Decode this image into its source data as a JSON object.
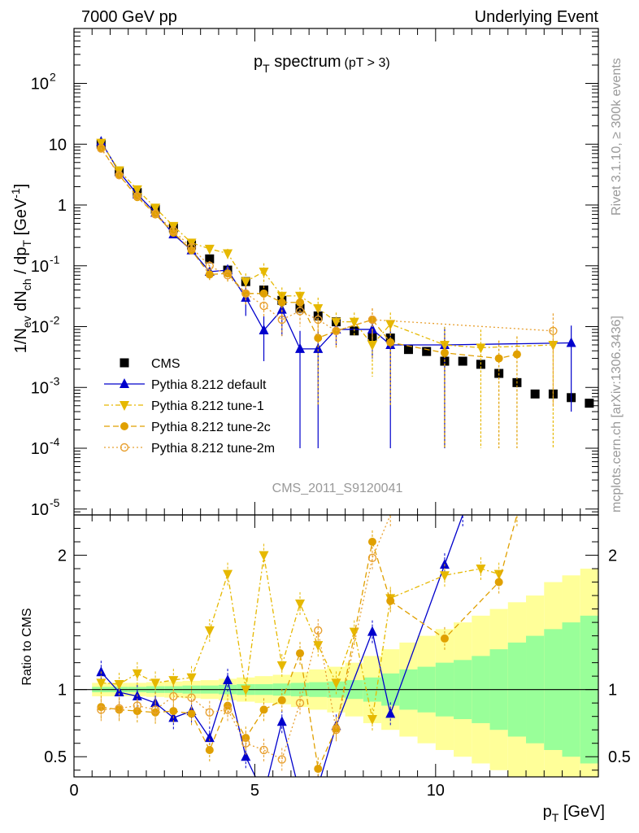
{
  "header": {
    "left": "7000 GeV pp",
    "right": "Underlying Event"
  },
  "side": {
    "top": "Rivet 3.1.10, ≥ 300k events",
    "bottom": "mcplots.cern.ch [arXiv:1306.3436]"
  },
  "watermark": "CMS_2011_S9120041",
  "colors": {
    "cms": "#000000",
    "default": "#0000cc",
    "tune1": "#e6b800",
    "tune2c": "#e0a000",
    "tune2m": "#e8a030",
    "band_green": "#99ff99",
    "band_yellow": "#ffff99"
  },
  "chart_data": [
    {
      "type": "scatter",
      "title_main": "p",
      "title_sub": "T",
      "title_rest": " spectrum",
      "title_cut": "(pT >  3)",
      "ylabel": "1/N_ev dN_ch / dp_T [GeV^-1]",
      "ylabel_parts": {
        "a": "1/N",
        "b": "ev",
        "c": " dN",
        "d": "ch",
        "e": " / dp",
        "f": "T",
        "g": " [GeV",
        "h": "-1",
        "i": "]"
      },
      "xlim": [
        0,
        14.5
      ],
      "yscale": "log",
      "ylim": [
        8e-06,
        800
      ],
      "yticks": [
        {
          "v": 1e-05,
          "m": "10",
          "e": "-5"
        },
        {
          "v": 0.0001,
          "m": "10",
          "e": "-4"
        },
        {
          "v": 0.001,
          "m": "10",
          "e": "-3"
        },
        {
          "v": 0.01,
          "m": "10",
          "e": "-2"
        },
        {
          "v": 0.1,
          "m": "10",
          "e": "-1"
        },
        {
          "v": 1,
          "m": "1",
          "e": ""
        },
        {
          "v": 10,
          "m": "10",
          "e": ""
        },
        {
          "v": 100,
          "m": "10",
          "e": "2"
        }
      ],
      "legend": [
        {
          "key": "cms",
          "label": "CMS"
        },
        {
          "key": "default",
          "label": "Pythia 8.212 default"
        },
        {
          "key": "tune1",
          "label": "Pythia 8.212 tune-1"
        },
        {
          "key": "tune2c",
          "label": "Pythia 8.212 tune-2c"
        },
        {
          "key": "tune2m",
          "label": "Pythia 8.212 tune-2m"
        }
      ],
      "cms": {
        "x": [
          0.75,
          1.25,
          1.75,
          2.25,
          2.75,
          3.25,
          3.75,
          4.25,
          4.75,
          5.25,
          5.75,
          6.25,
          6.75,
          7.25,
          7.75,
          8.25,
          8.75,
          9.25,
          9.75,
          10.25,
          10.75,
          11.25,
          11.75,
          12.25,
          12.75,
          13.25,
          13.75,
          14.25
        ],
        "y": [
          10,
          3.6,
          1.6,
          0.85,
          0.42,
          0.22,
          0.13,
          0.085,
          0.055,
          0.04,
          0.027,
          0.02,
          0.015,
          0.012,
          0.0085,
          0.0068,
          0.0065,
          0.0042,
          0.0039,
          0.0027,
          0.0027,
          0.0024,
          0.0017,
          0.0012,
          0.00078,
          0.00078,
          0.00068,
          0.00055
        ]
      },
      "series": [
        {
          "key": "default",
          "x": [
            0.75,
            1.25,
            1.75,
            2.25,
            2.75,
            3.25,
            3.75,
            4.25,
            4.75,
            5.25,
            5.75,
            6.25,
            6.75,
            7.25,
            8.25,
            8.75,
            10.25,
            13.75
          ],
          "y": [
            11,
            3.5,
            1.5,
            0.75,
            0.33,
            0.18,
            0.08,
            0.085,
            0.03,
            0.0087,
            0.019,
            0.0043,
            0.0043,
            0.009,
            0.009,
            0.005,
            0.005,
            0.0054
          ],
          "err": [
            0.5,
            0.2,
            0.1,
            0.05,
            0.03,
            0.02,
            0.015,
            0.02,
            0.015,
            0.006,
            0.012,
            0.0042,
            0.0042,
            0.004,
            0.006,
            0.0049,
            0.0049,
            0.005
          ]
        },
        {
          "key": "tune1",
          "x": [
            0.75,
            1.25,
            1.75,
            2.25,
            2.75,
            3.25,
            3.75,
            4.25,
            4.75,
            5.25,
            5.75,
            6.25,
            6.75,
            7.25,
            7.75,
            8.25,
            8.75,
            10.25,
            11.25,
            13.25
          ],
          "y": [
            10.5,
            3.7,
            1.8,
            0.9,
            0.45,
            0.24,
            0.19,
            0.16,
            0.055,
            0.08,
            0.032,
            0.032,
            0.02,
            0.012,
            0.012,
            0.005,
            0.011,
            0.005,
            0.0045,
            0.005
          ],
          "err": [
            0.5,
            0.2,
            0.1,
            0.05,
            0.03,
            0.025,
            0.03,
            0.03,
            0.02,
            0.03,
            0.012,
            0.012,
            0.01,
            0.005,
            0.005,
            0.0035,
            0.006,
            0.0049,
            0.0044,
            0.0049
          ]
        },
        {
          "key": "tune2c",
          "x": [
            0.75,
            1.25,
            1.75,
            2.25,
            2.75,
            3.25,
            3.75,
            4.25,
            4.75,
            5.25,
            5.75,
            6.25,
            6.75,
            7.25,
            8.25,
            8.75,
            10.25,
            11.75,
            12.25
          ],
          "y": [
            8.7,
            3.1,
            1.35,
            0.7,
            0.35,
            0.18,
            0.072,
            0.075,
            0.035,
            0.035,
            0.025,
            0.025,
            0.0065,
            0.0085,
            0.013,
            0.0055,
            0.0037,
            0.003,
            0.0035
          ],
          "err": [
            0.4,
            0.15,
            0.08,
            0.04,
            0.025,
            0.02,
            0.015,
            0.02,
            0.012,
            0.012,
            0.01,
            0.01,
            0.006,
            0.004,
            0.007,
            0.005,
            0.0036,
            0.0029,
            0.0034
          ]
        },
        {
          "key": "tune2m",
          "x": [
            0.75,
            1.25,
            1.75,
            2.25,
            2.75,
            3.25,
            3.75,
            4.25,
            4.75,
            5.25,
            5.75,
            6.25,
            6.75,
            7.25,
            8.25,
            13.25
          ],
          "y": [
            8.5,
            3.1,
            1.4,
            0.72,
            0.38,
            0.2,
            0.1,
            0.07,
            0.035,
            0.022,
            0.013,
            0.018,
            0.013,
            0.0085,
            0.013,
            0.0085
          ],
          "err": [
            0.4,
            0.15,
            0.08,
            0.04,
            0.025,
            0.02,
            0.02,
            0.015,
            0.012,
            0.008,
            0.006,
            0.008,
            0.006,
            0.004,
            0.007,
            0.008
          ]
        }
      ]
    },
    {
      "type": "line",
      "xlabel": "p_T [GeV]",
      "xlabel_parts": {
        "a": "p",
        "b": "T",
        "c": " [GeV]"
      },
      "ylabel": "Ratio to CMS",
      "xlim": [
        0,
        14.5
      ],
      "ylim": [
        0.35,
        2.3
      ],
      "xticks": [
        0,
        5,
        10
      ],
      "yticks": [
        0.5,
        1,
        2
      ],
      "bands": {
        "edges": [
          0.5,
          1.0,
          1.5,
          2.0,
          2.5,
          3.0,
          3.5,
          4.0,
          4.5,
          5.0,
          5.5,
          6.0,
          6.5,
          7.0,
          7.5,
          8.0,
          8.5,
          9.0,
          9.5,
          10.0,
          10.5,
          11.0,
          11.5,
          12.0,
          12.5,
          13.0,
          13.5,
          14.0,
          14.5
        ],
        "green": [
          0.02,
          0.02,
          0.02,
          0.025,
          0.025,
          0.03,
          0.03,
          0.035,
          0.04,
          0.04,
          0.045,
          0.05,
          0.055,
          0.06,
          0.07,
          0.09,
          0.12,
          0.15,
          0.17,
          0.2,
          0.22,
          0.25,
          0.3,
          0.35,
          0.4,
          0.45,
          0.5,
          0.55
        ],
        "yellow": [
          0.05,
          0.05,
          0.05,
          0.055,
          0.06,
          0.065,
          0.07,
          0.08,
          0.09,
          0.1,
          0.11,
          0.13,
          0.15,
          0.17,
          0.2,
          0.25,
          0.3,
          0.35,
          0.4,
          0.45,
          0.5,
          0.55,
          0.6,
          0.65,
          0.7,
          0.8,
          0.85,
          0.9
        ]
      },
      "series": [
        {
          "key": "default",
          "x": [
            0.75,
            1.25,
            1.75,
            2.25,
            2.75,
            3.25,
            3.75,
            4.25,
            4.75,
            5.25,
            5.75,
            6.25,
            6.75,
            7.25,
            8.25,
            8.75,
            10.25,
            10.75
          ],
          "y": [
            1.13,
            0.98,
            0.95,
            0.9,
            0.79,
            0.84,
            0.64,
            1.07,
            0.5,
            0.22,
            0.76,
            0.22,
            0.28,
            0.73,
            1.43,
            0.82,
            1.93,
            2.3
          ]
        },
        {
          "key": "tune1",
          "x": [
            0.75,
            1.25,
            1.75,
            2.25,
            2.75,
            3.25,
            3.75,
            4.25,
            4.75,
            5.25,
            5.75,
            6.25,
            6.75,
            7.25,
            7.75,
            8.25,
            8.75,
            10.25,
            11.25,
            11.75
          ],
          "y": [
            1.05,
            1.04,
            1.12,
            1.05,
            1.07,
            1.09,
            1.44,
            1.86,
            1.0,
            2.0,
            1.18,
            1.64,
            1.33,
            1.05,
            1.43,
            0.78,
            1.68,
            1.85,
            1.9,
            1.86
          ]
        },
        {
          "key": "tune2c",
          "x": [
            0.75,
            1.25,
            1.75,
            2.25,
            2.75,
            3.25,
            3.75,
            4.25,
            4.75,
            5.25,
            5.75,
            6.25,
            6.75,
            7.25,
            8.25,
            8.75,
            10.25,
            11.75,
            12.25
          ],
          "y": [
            0.87,
            0.85,
            0.84,
            0.83,
            0.84,
            0.82,
            0.55,
            0.88,
            0.64,
            0.85,
            0.92,
            1.27,
            0.41,
            0.71,
            2.1,
            1.66,
            1.38,
            1.8,
            2.3
          ]
        },
        {
          "key": "tune2m",
          "x": [
            0.75,
            1.25,
            1.75,
            2.25,
            2.75,
            3.25,
            3.75,
            4.25,
            4.75,
            5.25,
            5.75,
            6.25,
            6.75,
            7.25,
            8.25,
            8.75
          ],
          "y": [
            0.85,
            0.86,
            0.88,
            0.85,
            0.95,
            0.94,
            0.83,
            0.85,
            0.6,
            0.55,
            0.48,
            0.9,
            1.44,
            0.7,
            1.98,
            2.3
          ]
        }
      ]
    }
  ]
}
